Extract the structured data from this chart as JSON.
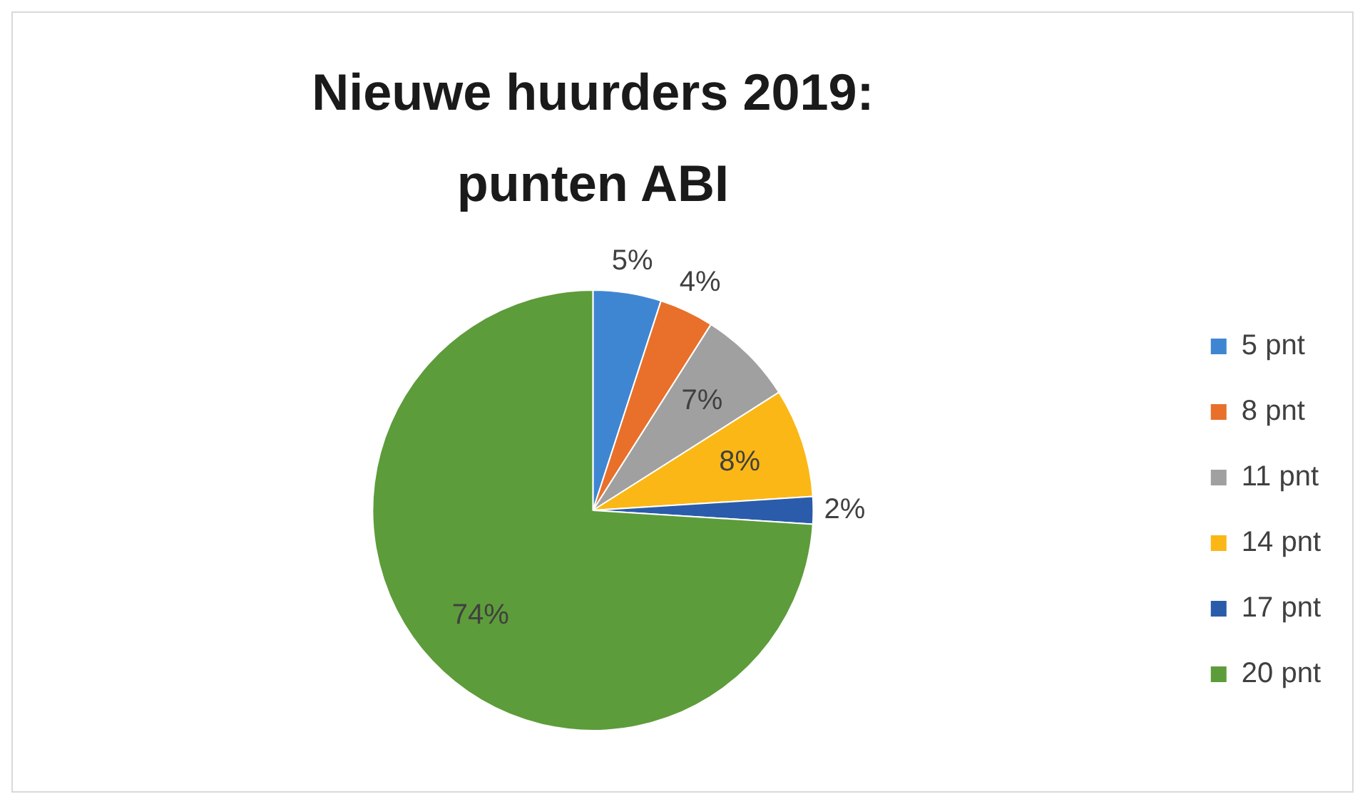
{
  "chart_data": {
    "type": "pie",
    "title": [
      "Nieuwe huurders 2019:",
      "punten ABI"
    ],
    "categories": [
      "5 pnt",
      "8 pnt",
      "11 pnt",
      "14 pnt",
      "17 pnt",
      "20 pnt"
    ],
    "values": [
      5,
      4,
      7,
      8,
      2,
      74
    ],
    "colors": [
      "#3f86d2",
      "#e8702a",
      "#a0a0a0",
      "#fbb716",
      "#2a5cab",
      "#5d9c3a"
    ],
    "value_labels": [
      "5%",
      "4%",
      "7%",
      "8%",
      "2%",
      "74%"
    ],
    "legend": "right"
  }
}
